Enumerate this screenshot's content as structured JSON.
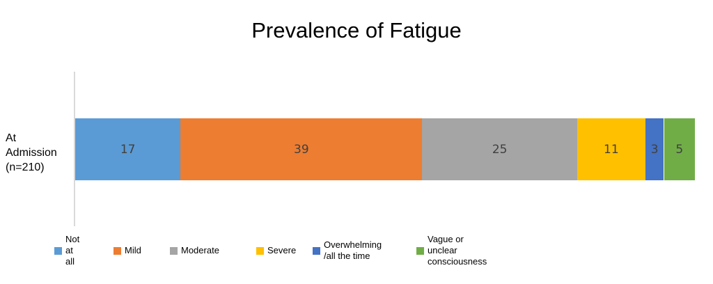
{
  "chart_data": {
    "type": "bar",
    "orientation": "horizontal",
    "stacked": true,
    "title": "Prevalence of Fatigue",
    "categories": [
      "At\nAdmission\n(n=210)"
    ],
    "series": [
      {
        "name": "Not at all",
        "values": [
          17
        ],
        "color": "#5b9bd5"
      },
      {
        "name": "Mild",
        "values": [
          39
        ],
        "color": "#ed7d31"
      },
      {
        "name": "Moderate",
        "values": [
          25
        ],
        "color": "#a5a5a5"
      },
      {
        "name": "Severe",
        "values": [
          11
        ],
        "color": "#ffc000"
      },
      {
        "name": "Overwhelming\n/all the time",
        "values": [
          3
        ],
        "color": "#4472c4"
      },
      {
        "name": "Vague or unclear consciousness",
        "values": [
          5
        ],
        "color": "#70ad47"
      }
    ],
    "xlim": [
      0,
      100
    ],
    "grid": false,
    "legend_position": "bottom"
  }
}
